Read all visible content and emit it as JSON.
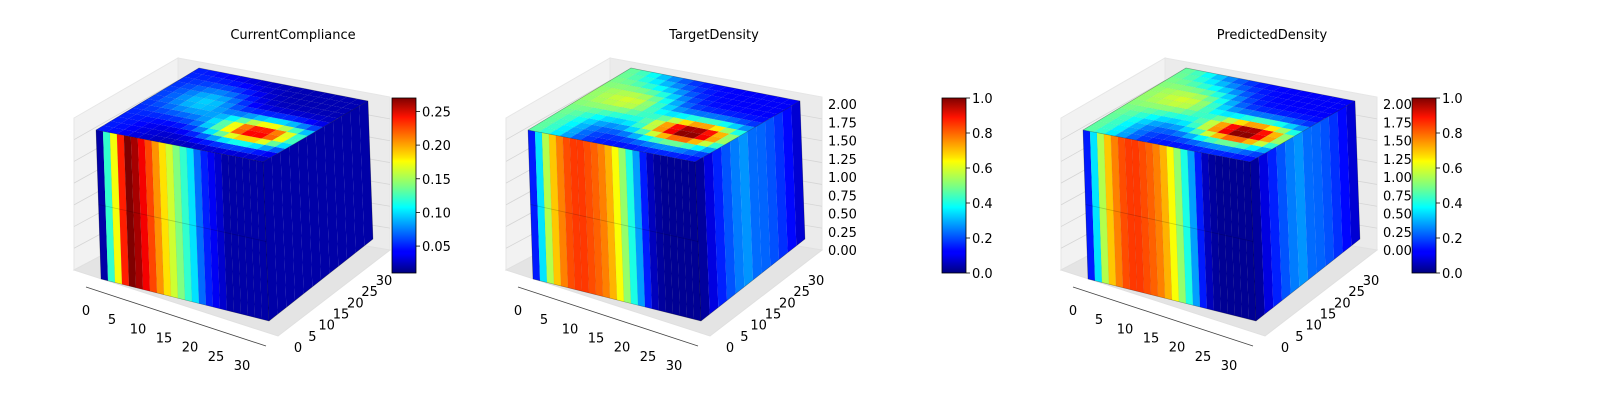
{
  "chart_data": [
    {
      "type": "voxel-3d",
      "title": "CurrentCompliance",
      "x_ticks": [
        "0",
        "5",
        "10",
        "15",
        "20",
        "25",
        "30"
      ],
      "y_ticks": [
        "0",
        "5",
        "10",
        "15",
        "20",
        "25",
        "30"
      ],
      "z_ticks": [],
      "colorbar": {
        "colormap": "jet",
        "range": [
          0.01,
          0.27
        ],
        "ticks": [
          "0.05",
          "0.10",
          "0.15",
          "0.20",
          "0.25"
        ]
      },
      "front_profile": [
        0.02,
        0.12,
        0.17,
        0.23,
        0.27,
        0.26,
        0.24,
        0.22,
        0.2,
        0.18,
        0.16,
        0.14,
        0.12,
        0.1,
        0.07,
        0.05,
        0.04,
        0.03,
        0.02,
        0.02,
        0.02,
        0.02,
        0.02,
        0.02
      ],
      "top_hot_value": 0.27
    },
    {
      "type": "voxel-3d",
      "title": "TargetDensity",
      "x_ticks": [
        "0",
        "5",
        "10",
        "15",
        "20",
        "25",
        "30"
      ],
      "y_ticks": [
        "0",
        "5",
        "10",
        "15",
        "20",
        "25",
        "30"
      ],
      "z_ticks": [
        "0.00",
        "0.25",
        "0.50",
        "0.75",
        "1.00",
        "1.25",
        "1.50",
        "1.75",
        "2.00"
      ],
      "colorbar": {
        "colormap": "jet",
        "range": [
          0.0,
          1.0
        ],
        "ticks": [
          "0.0",
          "0.2",
          "0.4",
          "0.6",
          "0.8",
          "1.0"
        ]
      },
      "front_profile": [
        0.15,
        0.35,
        0.55,
        0.68,
        0.75,
        0.8,
        0.82,
        0.82,
        0.8,
        0.78,
        0.75,
        0.7,
        0.62,
        0.52,
        0.4,
        0.28,
        0.15,
        0.06,
        0.03,
        0.02,
        0.02,
        0.02,
        0.02,
        0.02
      ],
      "top_hot_value": 1.0
    },
    {
      "type": "voxel-3d",
      "title": "PredictedDensity",
      "x_ticks": [
        "0",
        "5",
        "10",
        "15",
        "20",
        "25",
        "30"
      ],
      "y_ticks": [
        "0",
        "5",
        "10",
        "15",
        "20",
        "25",
        "30"
      ],
      "z_ticks": [
        "0.00",
        "0.25",
        "0.50",
        "0.75",
        "1.00",
        "1.25",
        "1.50",
        "1.75",
        "2.00"
      ],
      "colorbar": {
        "colormap": "jet",
        "range": [
          0.0,
          1.0
        ],
        "ticks": [
          "0.0",
          "0.2",
          "0.4",
          "0.6",
          "0.8",
          "1.0"
        ]
      },
      "front_profile": [
        0.15,
        0.35,
        0.55,
        0.68,
        0.75,
        0.8,
        0.82,
        0.82,
        0.8,
        0.78,
        0.75,
        0.7,
        0.62,
        0.52,
        0.4,
        0.28,
        0.15,
        0.06,
        0.03,
        0.02,
        0.02,
        0.02,
        0.02,
        0.02
      ],
      "top_hot_value": 1.0
    }
  ]
}
